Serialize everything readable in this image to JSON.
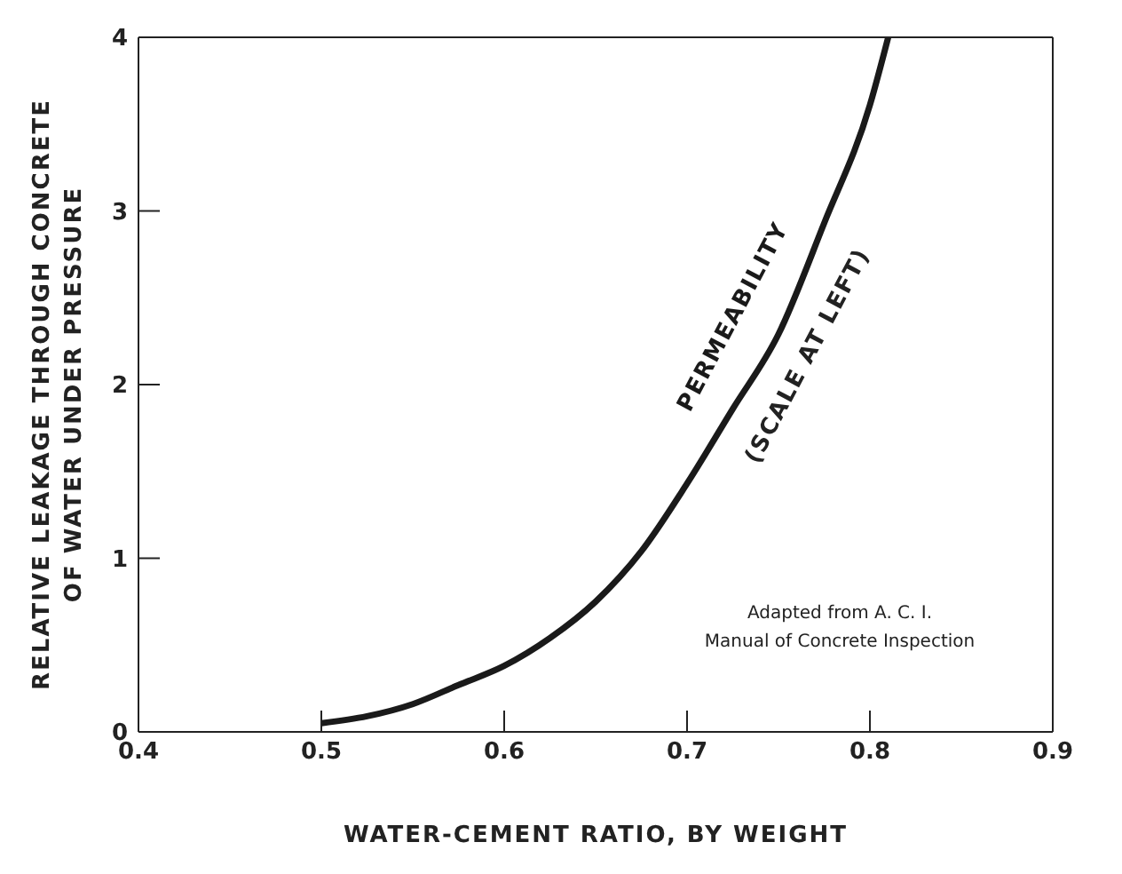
{
  "chart_data": {
    "type": "line",
    "xlabel": "WATER-CEMENT RATIO, BY WEIGHT",
    "ylabel": "RELATIVE LEAKAGE THROUGH CONCRETE\nOF WATER UNDER PRESSURE",
    "x": [
      0.5,
      0.525,
      0.55,
      0.575,
      0.6,
      0.625,
      0.65,
      0.675,
      0.7,
      0.725,
      0.75,
      0.775,
      0.8,
      0.81
    ],
    "series": [
      {
        "name": "PERMEABILITY",
        "color": "#1a1a1a",
        "values": [
          0.05,
          0.09,
          0.16,
          0.27,
          0.38,
          0.54,
          0.75,
          1.04,
          1.43,
          1.86,
          2.29,
          2.93,
          3.61,
          4
        ]
      }
    ],
    "annotations": [
      "(SCALE AT LEFT)",
      "Adapted from A. C. I.\nManual of Concrete Inspection"
    ],
    "xlim": [
      0.4,
      0.9
    ],
    "xticks": [
      0.4,
      0.5,
      0.6,
      0.7,
      0.8,
      0.9
    ],
    "ylim": [
      0,
      4
    ],
    "yticks": [
      0,
      1,
      2,
      3,
      4
    ],
    "grid": false,
    "legend": false,
    "marker": "none",
    "line_style": "solid"
  }
}
